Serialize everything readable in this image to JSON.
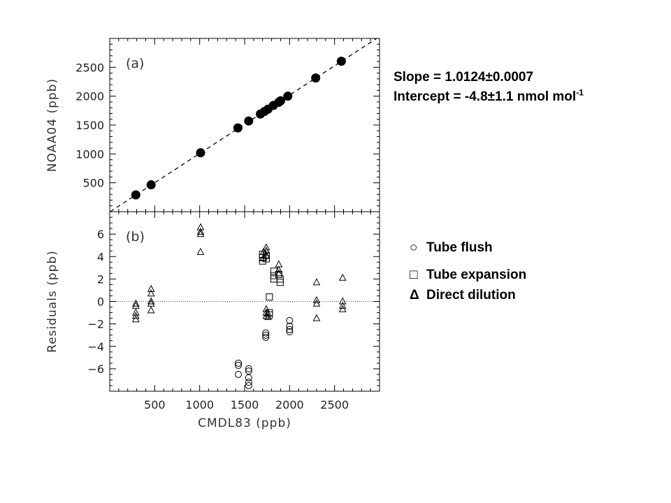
{
  "chart_data": [
    {
      "panel": "a",
      "type": "scatter",
      "panel_label": "(a)",
      "xlabel": "",
      "ylabel": "NOAA04 (ppb)",
      "xlim": [
        0,
        3000
      ],
      "ylim": [
        0,
        3000
      ],
      "yticks": [
        500,
        1000,
        1500,
        2000,
        2500
      ],
      "fit_line": {
        "slope": 1.0124,
        "intercept": -4.8,
        "style": "dashed"
      },
      "points": [
        {
          "x": 290,
          "y": 290
        },
        {
          "x": 460,
          "y": 465
        },
        {
          "x": 1010,
          "y": 1020
        },
        {
          "x": 1425,
          "y": 1450
        },
        {
          "x": 1545,
          "y": 1570
        },
        {
          "x": 1675,
          "y": 1690
        },
        {
          "x": 1720,
          "y": 1735
        },
        {
          "x": 1760,
          "y": 1775
        },
        {
          "x": 1820,
          "y": 1840
        },
        {
          "x": 1880,
          "y": 1895
        },
        {
          "x": 1900,
          "y": 1920
        },
        {
          "x": 1980,
          "y": 2000
        },
        {
          "x": 2290,
          "y": 2315
        },
        {
          "x": 2575,
          "y": 2605
        }
      ]
    },
    {
      "panel": "b",
      "type": "scatter",
      "panel_label": "(b)",
      "xlabel": "CMDL83 (ppb)",
      "ylabel": "Residuals (ppb)",
      "xlim": [
        0,
        3000
      ],
      "ylim": [
        -8,
        8
      ],
      "xticks": [
        500,
        1000,
        1500,
        2000,
        2500
      ],
      "yticks": [
        -6,
        -4,
        -2,
        0,
        2,
        4,
        6
      ],
      "ytick_labels": [
        "−6",
        "−4",
        "−2",
        "0",
        "2",
        "4",
        "6"
      ],
      "zero_line": "dotted",
      "series": [
        {
          "name": "Tube flush",
          "marker": "circle",
          "points": [
            {
              "x": 1430,
              "y": -5.5
            },
            {
              "x": 1430,
              "y": -5.7
            },
            {
              "x": 1430,
              "y": -6.5
            },
            {
              "x": 1545,
              "y": -6.0
            },
            {
              "x": 1545,
              "y": -6.2
            },
            {
              "x": 1545,
              "y": -6.8
            },
            {
              "x": 1545,
              "y": -7.2
            },
            {
              "x": 1545,
              "y": -7.5
            },
            {
              "x": 1735,
              "y": -2.8
            },
            {
              "x": 1735,
              "y": -3.0
            },
            {
              "x": 1735,
              "y": -3.2
            },
            {
              "x": 2000,
              "y": -1.7
            },
            {
              "x": 2000,
              "y": -2.2
            },
            {
              "x": 2000,
              "y": -2.5
            },
            {
              "x": 2000,
              "y": -2.7
            }
          ]
        },
        {
          "name": "Tube expansion",
          "marker": "square",
          "points": [
            {
              "x": 1700,
              "y": 4.2
            },
            {
              "x": 1700,
              "y": 3.9
            },
            {
              "x": 1700,
              "y": 3.6
            },
            {
              "x": 1740,
              "y": 4.1
            },
            {
              "x": 1740,
              "y": 3.8
            },
            {
              "x": 1775,
              "y": 0.4
            },
            {
              "x": 1775,
              "y": -1.0
            },
            {
              "x": 1775,
              "y": -1.2
            },
            {
              "x": 1825,
              "y": 2.7
            },
            {
              "x": 1825,
              "y": 2.3
            },
            {
              "x": 1825,
              "y": 2.0
            },
            {
              "x": 1880,
              "y": 2.4
            },
            {
              "x": 1895,
              "y": 2.0
            },
            {
              "x": 1895,
              "y": 1.7
            }
          ]
        },
        {
          "name": "Direct dilution",
          "marker": "triangle",
          "points": [
            {
              "x": 290,
              "y": -0.2
            },
            {
              "x": 290,
              "y": -0.4
            },
            {
              "x": 290,
              "y": -1.0
            },
            {
              "x": 290,
              "y": -1.3
            },
            {
              "x": 290,
              "y": -1.6
            },
            {
              "x": 460,
              "y": 1.1
            },
            {
              "x": 460,
              "y": 0.7
            },
            {
              "x": 460,
              "y": 0.0
            },
            {
              "x": 460,
              "y": -0.2
            },
            {
              "x": 460,
              "y": -0.8
            },
            {
              "x": 1010,
              "y": 6.6
            },
            {
              "x": 1010,
              "y": 6.2
            },
            {
              "x": 1010,
              "y": 6.0
            },
            {
              "x": 1010,
              "y": 4.4
            },
            {
              "x": 1710,
              "y": 4.4
            },
            {
              "x": 1710,
              "y": 3.9
            },
            {
              "x": 1740,
              "y": 4.8
            },
            {
              "x": 1740,
              "y": 4.5
            },
            {
              "x": 1740,
              "y": 4.1
            },
            {
              "x": 1740,
              "y": -0.7
            },
            {
              "x": 1740,
              "y": -1.0
            },
            {
              "x": 1740,
              "y": -1.3
            },
            {
              "x": 1760,
              "y": -1.1
            },
            {
              "x": 1760,
              "y": -1.4
            },
            {
              "x": 1880,
              "y": 3.3
            },
            {
              "x": 1880,
              "y": 2.8
            },
            {
              "x": 1880,
              "y": 2.5
            },
            {
              "x": 2300,
              "y": 1.7
            },
            {
              "x": 2300,
              "y": 0.1
            },
            {
              "x": 2300,
              "y": -0.2
            },
            {
              "x": 2300,
              "y": -1.5
            },
            {
              "x": 2590,
              "y": 2.1
            },
            {
              "x": 2590,
              "y": 0.0
            },
            {
              "x": 2590,
              "y": -0.4
            },
            {
              "x": 2590,
              "y": -0.7
            }
          ]
        }
      ]
    }
  ],
  "fit_stats": {
    "slope_text": "Slope = 1.0124±0.0007",
    "intercept_text": "Intercept = -4.8±1.1 nmol mol",
    "intercept_superscript": "-1"
  },
  "legend": {
    "position": "right",
    "items": [
      {
        "symbol": "○",
        "label": "Tube flush"
      },
      {
        "symbol": "□",
        "label": "Tube expansion"
      },
      {
        "symbol": "Δ",
        "label": "Direct dilution"
      }
    ]
  }
}
